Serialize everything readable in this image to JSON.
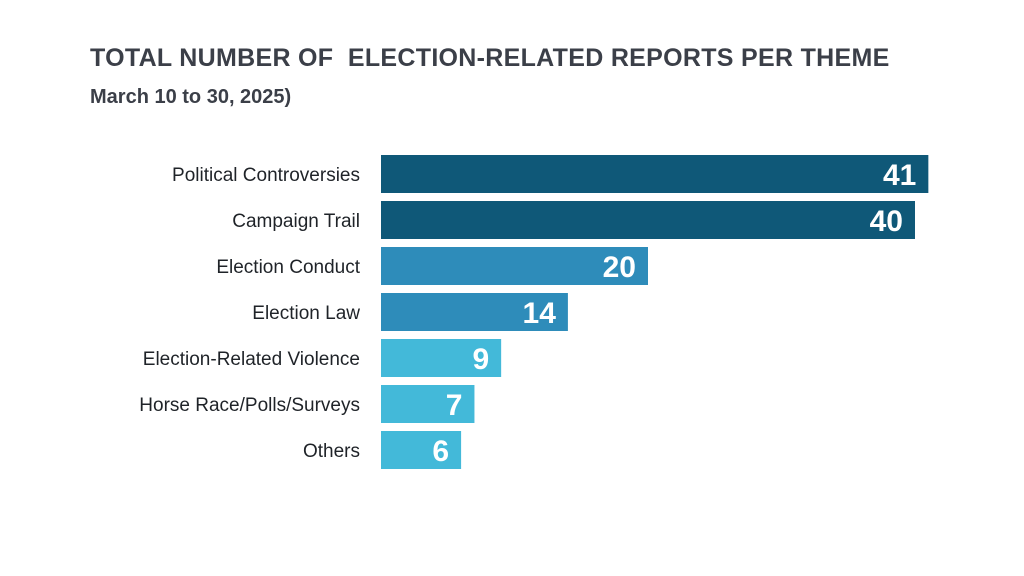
{
  "chart_data": {
    "type": "bar",
    "orientation": "horizontal",
    "title": "TOTAL NUMBER OF  ELECTION-RELATED REPORTS PER THEME",
    "subtitle": "March 10 to 30, 2025)",
    "categories": [
      "Political Controversies",
      "Campaign Trail",
      "Election Conduct",
      "Election Law",
      "Election-Related Violence",
      "Horse Race/Polls/Surveys",
      "Others"
    ],
    "values": [
      41,
      40,
      20,
      14,
      9,
      7,
      6
    ],
    "colors": [
      "#0f5878",
      "#0f5878",
      "#2e8cba",
      "#2e8cba",
      "#43b9d9",
      "#43b9d9",
      "#43b9d9"
    ],
    "data_labels": true,
    "grid": false
  }
}
